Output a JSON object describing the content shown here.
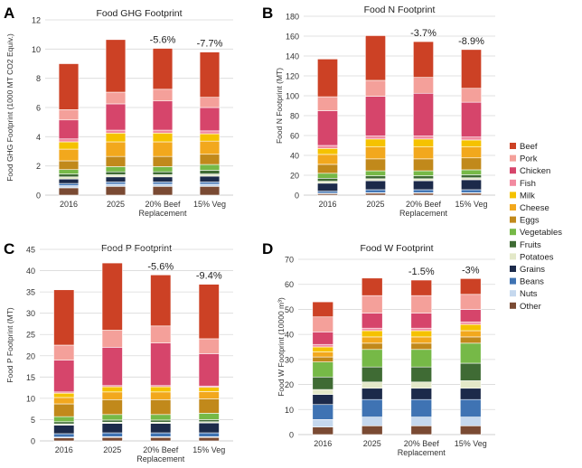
{
  "categories_order": [
    "Other",
    "Nuts",
    "Beans",
    "Grains",
    "Potatoes",
    "Fruits",
    "Vegetables",
    "Eggs",
    "Cheese",
    "Milk",
    "Fish",
    "Chicken",
    "Pork",
    "Beef"
  ],
  "colors": {
    "Beef": "#cc4125",
    "Pork": "#f4a09a",
    "Chicken": "#d6456b",
    "Fish": "#f28aa0",
    "Milk": "#f5c200",
    "Cheese": "#f2a81d",
    "Eggs": "#c1891b",
    "Vegetables": "#76b947",
    "Fruits": "#3f6b34",
    "Potatoes": "#e3e8c8",
    "Grains": "#1c2a4a",
    "Beans": "#3f73b3",
    "Nuts": "#c5d8ee",
    "Other": "#7a4a33"
  },
  "legend": [
    "Beef",
    "Pork",
    "Chicken",
    "Fish",
    "Milk",
    "Cheese",
    "Eggs",
    "Vegetables",
    "Fruits",
    "Potatoes",
    "Grains",
    "Beans",
    "Nuts",
    "Other"
  ],
  "chart_data": [
    {
      "panel": "A",
      "type": "bar",
      "stacked": true,
      "title": "Food GHG Footprint",
      "ylabel": "Food GHG Footprint (1000 MT CO2 Equiv.)",
      "ylim": [
        0,
        12
      ],
      "ytick_step": 2,
      "categories": [
        "2016",
        "2025",
        "20% Beef\nReplacement",
        "15% Veg"
      ],
      "annotations": [
        "",
        "",
        "-5.6%",
        "-7.7%"
      ],
      "series": [
        {
          "name": "Other",
          "values": [
            0.5,
            0.6,
            0.6,
            0.6
          ]
        },
        {
          "name": "Nuts",
          "values": [
            0.15,
            0.15,
            0.15,
            0.15
          ]
        },
        {
          "name": "Beans",
          "values": [
            0.15,
            0.15,
            0.15,
            0.15
          ]
        },
        {
          "name": "Grains",
          "values": [
            0.3,
            0.35,
            0.35,
            0.4
          ]
        },
        {
          "name": "Potatoes",
          "values": [
            0.15,
            0.15,
            0.15,
            0.15
          ]
        },
        {
          "name": "Fruits",
          "values": [
            0.2,
            0.2,
            0.2,
            0.25
          ]
        },
        {
          "name": "Vegetables",
          "values": [
            0.3,
            0.35,
            0.35,
            0.4
          ]
        },
        {
          "name": "Eggs",
          "values": [
            0.6,
            0.7,
            0.7,
            0.7
          ]
        },
        {
          "name": "Cheese",
          "values": [
            0.8,
            1.0,
            1.0,
            0.9
          ]
        },
        {
          "name": "Milk",
          "values": [
            0.5,
            0.6,
            0.6,
            0.5
          ]
        },
        {
          "name": "Fish",
          "values": [
            0.2,
            0.2,
            0.2,
            0.2
          ]
        },
        {
          "name": "Chicken",
          "values": [
            1.3,
            1.8,
            2.0,
            1.6
          ]
        },
        {
          "name": "Pork",
          "values": [
            0.7,
            0.8,
            0.8,
            0.7
          ]
        },
        {
          "name": "Beef",
          "values": [
            3.15,
            3.6,
            2.8,
            3.1
          ]
        }
      ]
    },
    {
      "panel": "B",
      "type": "bar",
      "stacked": true,
      "title": "Food N Footprint",
      "ylabel": "Food N Footprint (MT)",
      "ylim": [
        0,
        180
      ],
      "ytick_step": 20,
      "categories": [
        "2016",
        "2025",
        "20% Beef\nReplacement",
        "15% Veg"
      ],
      "annotations": [
        "",
        "",
        "-3.7%",
        "-8.9%"
      ],
      "series": [
        {
          "name": "Other",
          "values": [
            1.5,
            2,
            2,
            2
          ]
        },
        {
          "name": "Nuts",
          "values": [
            0.5,
            0.5,
            0.5,
            0.5
          ]
        },
        {
          "name": "Beans",
          "values": [
            2,
            3,
            3,
            3
          ]
        },
        {
          "name": "Grains",
          "values": [
            8,
            9,
            9,
            10
          ]
        },
        {
          "name": "Potatoes",
          "values": [
            2,
            2,
            2,
            2
          ]
        },
        {
          "name": "Fruits",
          "values": [
            3,
            3,
            3,
            3
          ]
        },
        {
          "name": "Vegetables",
          "values": [
            5,
            5,
            5,
            5
          ]
        },
        {
          "name": "Eggs",
          "values": [
            9,
            12,
            12,
            12
          ]
        },
        {
          "name": "Cheese",
          "values": [
            10,
            12,
            12,
            11
          ]
        },
        {
          "name": "Milk",
          "values": [
            6,
            8,
            8,
            7
          ]
        },
        {
          "name": "Fish",
          "values": [
            3,
            3,
            3,
            3
          ]
        },
        {
          "name": "Chicken",
          "values": [
            35,
            40,
            43,
            35
          ]
        },
        {
          "name": "Pork",
          "values": [
            14,
            16,
            16,
            14
          ]
        },
        {
          "name": "Beef",
          "values": [
            38,
            45,
            36,
            39
          ]
        }
      ]
    },
    {
      "panel": "C",
      "type": "bar",
      "stacked": true,
      "title": "Food P Footprint",
      "ylabel": "Food P Footprint (MT)",
      "ylim": [
        0,
        45
      ],
      "ytick_step": 5,
      "categories": [
        "2016",
        "2025",
        "20% Beef\nReplacement",
        "15% Veg"
      ],
      "annotations": [
        "",
        "",
        "-5.6%",
        "-9.4%"
      ],
      "series": [
        {
          "name": "Other",
          "values": [
            0.7,
            0.8,
            0.8,
            0.8
          ]
        },
        {
          "name": "Nuts",
          "values": [
            0.2,
            0.2,
            0.2,
            0.2
          ]
        },
        {
          "name": "Beans",
          "values": [
            0.8,
            0.9,
            0.9,
            0.9
          ]
        },
        {
          "name": "Grains",
          "values": [
            2,
            2.2,
            2.2,
            2.3
          ]
        },
        {
          "name": "Potatoes",
          "values": [
            0.3,
            0.3,
            0.3,
            0.3
          ]
        },
        {
          "name": "Fruits",
          "values": [
            0.5,
            0.5,
            0.5,
            0.5
          ]
        },
        {
          "name": "Vegetables",
          "values": [
            1.2,
            1.3,
            1.3,
            1.5
          ]
        },
        {
          "name": "Eggs",
          "values": [
            3,
            3.5,
            3.5,
            3.4
          ]
        },
        {
          "name": "Cheese",
          "values": [
            1.5,
            1.8,
            1.8,
            1.7
          ]
        },
        {
          "name": "Milk",
          "values": [
            1,
            1.2,
            1.2,
            1.0
          ]
        },
        {
          "name": "Fish",
          "values": [
            0.3,
            0.3,
            0.3,
            0.3
          ]
        },
        {
          "name": "Chicken",
          "values": [
            7.5,
            9,
            10,
            7.6
          ]
        },
        {
          "name": "Pork",
          "values": [
            3.5,
            4,
            4,
            3.5
          ]
        },
        {
          "name": "Beef",
          "values": [
            13,
            15.8,
            12,
            12.8
          ]
        }
      ]
    },
    {
      "panel": "D",
      "type": "bar",
      "stacked": true,
      "title": "Food W Footprint",
      "ylabel": "Food W Footprint (10000 m³)",
      "ylim": [
        0,
        70
      ],
      "ytick_step": 10,
      "categories": [
        "2016",
        "2025",
        "20% Beef\nReplacement",
        "15% Veg"
      ],
      "annotations": [
        "",
        "",
        "-1.5%",
        "-3%"
      ],
      "series": [
        {
          "name": "Other",
          "values": [
            3,
            3.5,
            3.5,
            3.5
          ]
        },
        {
          "name": "Nuts",
          "values": [
            3,
            3.5,
            3.5,
            3.5
          ]
        },
        {
          "name": "Beans",
          "values": [
            6,
            7,
            7,
            7
          ]
        },
        {
          "name": "Grains",
          "values": [
            4,
            4.5,
            4.5,
            4.5
          ]
        },
        {
          "name": "Potatoes",
          "values": [
            2,
            2.5,
            2.5,
            3
          ]
        },
        {
          "name": "Fruits",
          "values": [
            5,
            6,
            6,
            7
          ]
        },
        {
          "name": "Vegetables",
          "values": [
            6,
            7,
            7,
            8
          ]
        },
        {
          "name": "Eggs",
          "values": [
            2,
            2.5,
            2.5,
            2.5
          ]
        },
        {
          "name": "Cheese",
          "values": [
            2,
            2.5,
            2.5,
            2.5
          ]
        },
        {
          "name": "Milk",
          "values": [
            2,
            2.5,
            2.5,
            2.5
          ]
        },
        {
          "name": "Fish",
          "values": [
            1,
            1,
            1,
            1
          ]
        },
        {
          "name": "Chicken",
          "values": [
            5,
            6,
            6,
            5
          ]
        },
        {
          "name": "Pork",
          "values": [
            6,
            7,
            7,
            6
          ]
        },
        {
          "name": "Beef",
          "values": [
            6,
            7,
            6.2,
            6.3
          ]
        }
      ]
    }
  ]
}
